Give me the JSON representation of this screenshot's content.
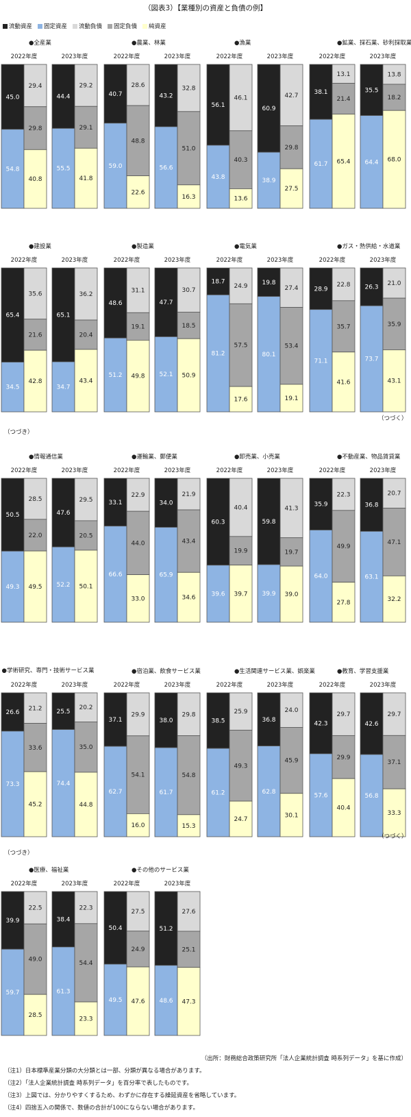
{
  "title": "（図表3）【業種別の資産と負債の例】",
  "legend": [
    {
      "label": "流動資産",
      "color": "#222222"
    },
    {
      "label": "固定資産",
      "color": "#8eb4e3"
    },
    {
      "label": "流動負債",
      "color": "#d9d9d9"
    },
    {
      "label": "固定負債",
      "color": "#a6a6a6"
    },
    {
      "label": "純資産",
      "color": "#ffffcc"
    }
  ],
  "continued_right": "（つづく）",
  "continued_left": "（つづき）",
  "source": "（出所：財務総合政策研究所「法人企業統計調査 時系列データ」を基に作成）",
  "notes": [
    "（注1）日本標準産業分類の大分類とは一部、分類が異なる場合があります。",
    "（注2）「法人企業統計調査 時系列データ」を百分率で表したものです。",
    "（注3）上図では、分かりやすくするため、わずかに存在する繰延資産を省略しています。",
    "（注4）四捨五入の関係で、数値の合計が100にならない場合があります。"
  ],
  "chart_data": {
    "type": "bar",
    "stacked": true,
    "unit": "%",
    "years": [
      "2022年度",
      "2023年度"
    ],
    "series": [
      "流動資産",
      "固定資産",
      "流動負債",
      "固定負債",
      "純資産"
    ],
    "groups": [
      {
        "name": "●全産業",
        "data": [
          {
            "year": "2022年度",
            "current_assets": 45.0,
            "fixed_assets": 54.8,
            "current_liabilities": 29.4,
            "fixed_liabilities": 29.8,
            "net_assets": 40.8
          },
          {
            "year": "2023年度",
            "current_assets": 44.4,
            "fixed_assets": 55.5,
            "current_liabilities": 29.2,
            "fixed_liabilities": 29.1,
            "net_assets": 41.8
          }
        ]
      },
      {
        "name": "●農業、林業",
        "data": [
          {
            "year": "2022年度",
            "current_assets": 40.7,
            "fixed_assets": 59.0,
            "current_liabilities": 28.6,
            "fixed_liabilities": 48.8,
            "net_assets": 22.6
          },
          {
            "year": "2023年度",
            "current_assets": 43.2,
            "fixed_assets": 56.6,
            "current_liabilities": 32.8,
            "fixed_liabilities": 51.0,
            "net_assets": 16.3
          }
        ]
      },
      {
        "name": "●漁業",
        "data": [
          {
            "year": "2022年度",
            "current_assets": 56.1,
            "fixed_assets": 43.8,
            "current_liabilities": 46.1,
            "fixed_liabilities": 40.3,
            "net_assets": 13.6
          },
          {
            "year": "2023年度",
            "current_assets": 60.9,
            "fixed_assets": 38.9,
            "current_liabilities": 42.7,
            "fixed_liabilities": 29.8,
            "net_assets": 27.5
          }
        ]
      },
      {
        "name": "●鉱業、採石業、砂利採取業",
        "data": [
          {
            "year": "2022年度",
            "current_assets": 38.1,
            "fixed_assets": 61.7,
            "current_liabilities": 13.1,
            "fixed_liabilities": 21.4,
            "net_assets": 65.4
          },
          {
            "year": "2023年度",
            "current_assets": 35.5,
            "fixed_assets": 64.4,
            "current_liabilities": 13.8,
            "fixed_liabilities": 18.2,
            "net_assets": 68.0
          }
        ]
      },
      {
        "name": "●建設業",
        "data": [
          {
            "year": "2022年度",
            "current_assets": 65.4,
            "fixed_assets": 34.5,
            "current_liabilities": 35.6,
            "fixed_liabilities": 21.6,
            "net_assets": 42.8
          },
          {
            "year": "2023年度",
            "current_assets": 65.1,
            "fixed_assets": 34.7,
            "current_liabilities": 36.2,
            "fixed_liabilities": 20.4,
            "net_assets": 43.4
          }
        ]
      },
      {
        "name": "●製造業",
        "data": [
          {
            "year": "2022年度",
            "current_assets": 48.6,
            "fixed_assets": 51.2,
            "current_liabilities": 31.1,
            "fixed_liabilities": 19.1,
            "net_assets": 49.8
          },
          {
            "year": "2023年度",
            "current_assets": 47.7,
            "fixed_assets": 52.1,
            "current_liabilities": 30.7,
            "fixed_liabilities": 18.5,
            "net_assets": 50.9
          }
        ]
      },
      {
        "name": "●電気業",
        "data": [
          {
            "year": "2022年度",
            "current_assets": 18.7,
            "fixed_assets": 81.2,
            "current_liabilities": 24.9,
            "fixed_liabilities": 57.5,
            "net_assets": 17.6
          },
          {
            "year": "2023年度",
            "current_assets": 19.8,
            "fixed_assets": 80.1,
            "current_liabilities": 27.4,
            "fixed_liabilities": 53.4,
            "net_assets": 19.1
          }
        ]
      },
      {
        "name": "●ガス・熱供給・水道業",
        "data": [
          {
            "year": "2022年度",
            "current_assets": 28.9,
            "fixed_assets": 71.1,
            "current_liabilities": 22.8,
            "fixed_liabilities": 35.7,
            "net_assets": 41.6
          },
          {
            "year": "2023年度",
            "current_assets": 26.3,
            "fixed_assets": 73.7,
            "current_liabilities": 21.0,
            "fixed_liabilities": 35.9,
            "net_assets": 43.1
          }
        ]
      },
      {
        "name": "●情報通信業",
        "data": [
          {
            "year": "2022年度",
            "current_assets": 50.5,
            "fixed_assets": 49.3,
            "current_liabilities": 28.5,
            "fixed_liabilities": 22.0,
            "net_assets": 49.5
          },
          {
            "year": "2023年度",
            "current_assets": 47.6,
            "fixed_assets": 52.2,
            "current_liabilities": 29.5,
            "fixed_liabilities": 20.5,
            "net_assets": 50.1
          }
        ]
      },
      {
        "name": "●運輸業、郵便業",
        "data": [
          {
            "year": "2022年度",
            "current_assets": 33.1,
            "fixed_assets": 66.6,
            "current_liabilities": 22.9,
            "fixed_liabilities": 44.0,
            "net_assets": 33.0
          },
          {
            "year": "2023年度",
            "current_assets": 34.0,
            "fixed_assets": 65.9,
            "current_liabilities": 21.9,
            "fixed_liabilities": 43.4,
            "net_assets": 34.6
          }
        ]
      },
      {
        "name": "●卸売業、小売業",
        "data": [
          {
            "year": "2022年度",
            "current_assets": 60.3,
            "fixed_assets": 39.6,
            "current_liabilities": 40.4,
            "fixed_liabilities": 19.9,
            "net_assets": 39.7
          },
          {
            "year": "2023年度",
            "current_assets": 59.8,
            "fixed_assets": 39.9,
            "current_liabilities": 41.3,
            "fixed_liabilities": 19.7,
            "net_assets": 39.0
          }
        ]
      },
      {
        "name": "●不動産業、物品賃貸業",
        "data": [
          {
            "year": "2022年度",
            "current_assets": 35.9,
            "fixed_assets": 64.0,
            "current_liabilities": 22.3,
            "fixed_liabilities": 49.9,
            "net_assets": 27.8
          },
          {
            "year": "2023年度",
            "current_assets": 36.8,
            "fixed_assets": 63.1,
            "current_liabilities": 20.7,
            "fixed_liabilities": 47.1,
            "net_assets": 32.2
          }
        ]
      },
      {
        "name": "●学術研究、専門・技術サービス業",
        "data": [
          {
            "year": "2022年度",
            "current_assets": 26.6,
            "fixed_assets": 73.3,
            "current_liabilities": 21.2,
            "fixed_liabilities": 33.6,
            "net_assets": 45.2
          },
          {
            "year": "2023年度",
            "current_assets": 25.5,
            "fixed_assets": 74.4,
            "current_liabilities": 20.2,
            "fixed_liabilities": 35.0,
            "net_assets": 44.8
          }
        ]
      },
      {
        "name": "●宿泊業、飲食サービス業",
        "data": [
          {
            "year": "2022年度",
            "current_assets": 37.1,
            "fixed_assets": 62.7,
            "current_liabilities": 29.9,
            "fixed_liabilities": 54.1,
            "net_assets": 16.0
          },
          {
            "year": "2023年度",
            "current_assets": 38.0,
            "fixed_assets": 61.7,
            "current_liabilities": 29.8,
            "fixed_liabilities": 54.8,
            "net_assets": 15.3
          }
        ]
      },
      {
        "name": "●生活関連サービス業、娯楽業",
        "data": [
          {
            "year": "2022年度",
            "current_assets": 38.5,
            "fixed_assets": 61.2,
            "current_liabilities": 25.9,
            "fixed_liabilities": 49.3,
            "net_assets": 24.7
          },
          {
            "year": "2023年度",
            "current_assets": 36.8,
            "fixed_assets": 62.8,
            "current_liabilities": 24.0,
            "fixed_liabilities": 45.9,
            "net_assets": 30.1
          }
        ]
      },
      {
        "name": "●教育、学習支援業",
        "data": [
          {
            "year": "2022年度",
            "current_assets": 42.3,
            "fixed_assets": 57.6,
            "current_liabilities": 29.7,
            "fixed_liabilities": 29.9,
            "net_assets": 40.4
          },
          {
            "year": "2023年度",
            "current_assets": 42.6,
            "fixed_assets": 56.8,
            "current_liabilities": 29.7,
            "fixed_liabilities": 37.1,
            "net_assets": 33.3
          }
        ]
      },
      {
        "name": "●医療、福祉業",
        "data": [
          {
            "year": "2022年度",
            "current_assets": 39.9,
            "fixed_assets": 59.7,
            "current_liabilities": 22.5,
            "fixed_liabilities": 49.0,
            "net_assets": 28.5
          },
          {
            "year": "2023年度",
            "current_assets": 38.4,
            "fixed_assets": 61.3,
            "current_liabilities": 22.3,
            "fixed_liabilities": 54.4,
            "net_assets": 23.3
          }
        ]
      },
      {
        "name": "●その他のサービス業",
        "data": [
          {
            "year": "2022年度",
            "current_assets": 50.4,
            "fixed_assets": 49.5,
            "current_liabilities": 27.5,
            "fixed_liabilities": 24.9,
            "net_assets": 47.6
          },
          {
            "year": "2023年度",
            "current_assets": 51.2,
            "fixed_assets": 48.6,
            "current_liabilities": 27.6,
            "fixed_liabilities": 25.1,
            "net_assets": 47.3
          }
        ]
      }
    ]
  }
}
